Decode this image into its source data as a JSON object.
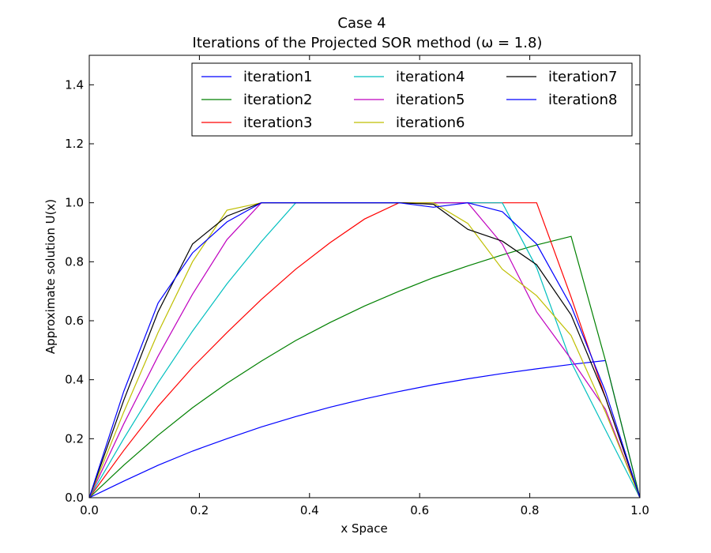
{
  "chart_data": {
    "type": "line",
    "title": "Case 4",
    "subtitle": "Iterations of the Projected SOR method (ω = 1.8)",
    "xlabel": "x Space",
    "ylabel": "Approximate solution U(x)",
    "xlim": [
      0.0,
      1.0
    ],
    "ylim": [
      0.0,
      1.5
    ],
    "xticks": [
      "0.0",
      "0.2",
      "0.4",
      "0.6",
      "0.8",
      "1.0"
    ],
    "yticks": [
      "0.0",
      "0.2",
      "0.4",
      "0.6",
      "0.8",
      "1.0",
      "1.2",
      "1.4"
    ],
    "grid": false,
    "legend_position": "top-right",
    "legend_columns": 3,
    "x": [
      0.0,
      0.0625,
      0.125,
      0.1875,
      0.25,
      0.3125,
      0.375,
      0.4375,
      0.5,
      0.5625,
      0.625,
      0.6875,
      0.75,
      0.8125,
      0.875,
      0.9375,
      1.0
    ],
    "series": [
      {
        "name": "iteration1",
        "color": "#0000ff",
        "values": [
          0.0,
          0.056,
          0.11,
          0.158,
          0.2,
          0.24,
          0.275,
          0.307,
          0.335,
          0.36,
          0.383,
          0.403,
          0.421,
          0.437,
          0.452,
          0.465,
          0.0
        ]
      },
      {
        "name": "iteration2",
        "color": "#008000",
        "values": [
          0.0,
          0.11,
          0.212,
          0.305,
          0.388,
          0.463,
          0.533,
          0.594,
          0.65,
          0.7,
          0.746,
          0.786,
          0.823,
          0.857,
          0.886,
          0.465,
          0.0
        ]
      },
      {
        "name": "iteration3",
        "color": "#ff0000",
        "values": [
          0.0,
          0.16,
          0.31,
          0.442,
          0.56,
          0.672,
          0.775,
          0.865,
          0.945,
          1.0,
          1.0,
          1.0,
          1.0,
          1.0,
          0.68,
          0.34,
          0.0
        ]
      },
      {
        "name": "iteration4",
        "color": "#00bfbf",
        "values": [
          0.0,
          0.2,
          0.39,
          0.565,
          0.725,
          0.868,
          1.0,
          1.0,
          1.0,
          1.0,
          1.0,
          1.0,
          1.0,
          0.78,
          0.46,
          0.23,
          0.0
        ]
      },
      {
        "name": "iteration5",
        "color": "#bf00bf",
        "values": [
          0.0,
          0.25,
          0.48,
          0.69,
          0.875,
          1.0,
          1.0,
          1.0,
          1.0,
          1.0,
          1.0,
          1.0,
          0.86,
          0.63,
          0.47,
          0.3,
          0.0
        ]
      },
      {
        "name": "iteration6",
        "color": "#bfbf00",
        "values": [
          0.0,
          0.29,
          0.56,
          0.8,
          0.975,
          1.0,
          1.0,
          1.0,
          1.0,
          1.0,
          1.0,
          0.93,
          0.775,
          0.685,
          0.55,
          0.29,
          0.0
        ]
      },
      {
        "name": "iteration7",
        "color": "#000000",
        "values": [
          0.0,
          0.33,
          0.63,
          0.86,
          0.955,
          1.0,
          1.0,
          1.0,
          1.0,
          1.0,
          0.995,
          0.91,
          0.87,
          0.79,
          0.62,
          0.34,
          0.0
        ]
      },
      {
        "name": "iteration8",
        "color": "#0000ff",
        "values": [
          0.0,
          0.36,
          0.66,
          0.83,
          0.935,
          1.0,
          1.0,
          1.0,
          1.0,
          1.0,
          0.985,
          1.0,
          0.97,
          0.86,
          0.65,
          0.36,
          0.0
        ]
      }
    ]
  }
}
